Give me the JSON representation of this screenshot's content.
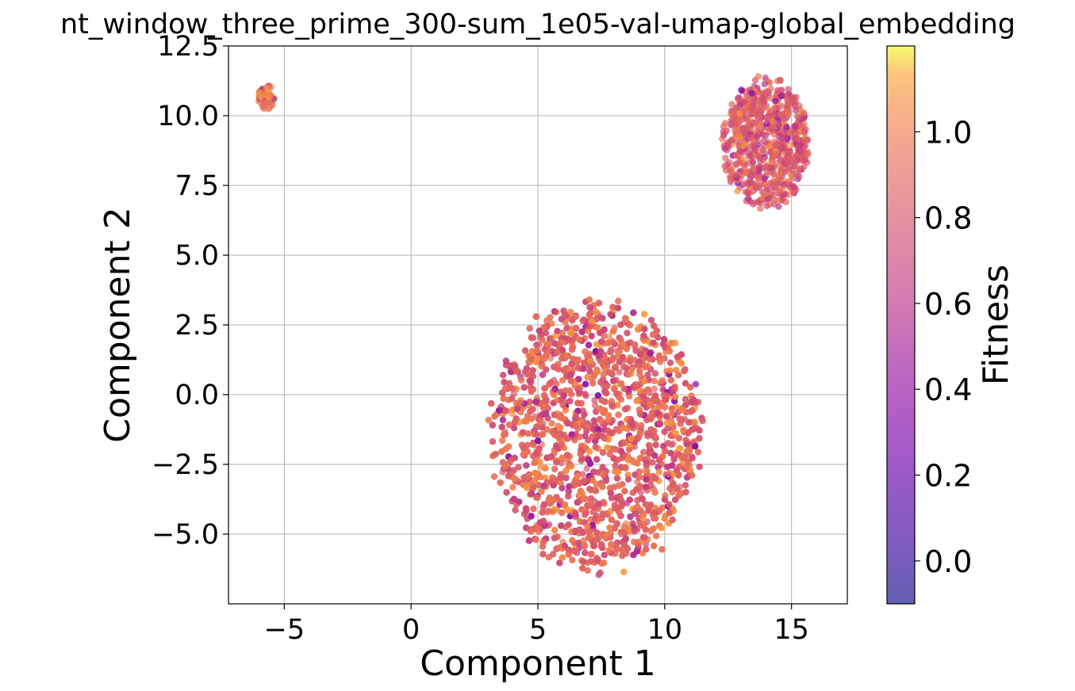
{
  "chart_data": {
    "type": "scatter",
    "title": "nt_window_three_prime_300-sum_1e05-val-umap-global_embedding",
    "xlabel": "Component 1",
    "ylabel": "Component 2",
    "xlim": [
      -7.2,
      17.2
    ],
    "ylim": [
      -7.5,
      12.5
    ],
    "x_ticks": [
      -5,
      0,
      5,
      10,
      15
    ],
    "x_tick_labels": [
      "−5",
      "0",
      "5",
      "10",
      "15"
    ],
    "y_ticks": [
      -5.0,
      -2.5,
      0.0,
      2.5,
      5.0,
      7.5,
      10.0,
      12.5
    ],
    "y_tick_labels": [
      "−5.0",
      "−2.5",
      "0.0",
      "2.5",
      "5.0",
      "7.5",
      "10.0",
      "12.5"
    ],
    "grid": true,
    "colorbar": {
      "label": "Fitness",
      "colormap": "plasma",
      "range": [
        -0.1,
        1.2
      ],
      "ticks": [
        0.0,
        0.2,
        0.4,
        0.6,
        0.8,
        1.0
      ],
      "tick_labels": [
        "0.0",
        "0.2",
        "0.4",
        "0.6",
        "0.8",
        "1.0"
      ]
    },
    "clusters": [
      {
        "center": [
          -5.7,
          10.65
        ],
        "extent": [
          0.35,
          0.5
        ],
        "count": 60,
        "fitness_mean": 0.98
      },
      {
        "center": [
          14.0,
          9.0
        ],
        "extent": [
          1.8,
          2.5
        ],
        "count": 700,
        "fitness_mean": 0.82
      },
      {
        "center": [
          7.3,
          -1.4
        ],
        "extent": [
          4.4,
          5.2
        ],
        "count": 3200,
        "fitness_mean": 0.88
      }
    ]
  }
}
